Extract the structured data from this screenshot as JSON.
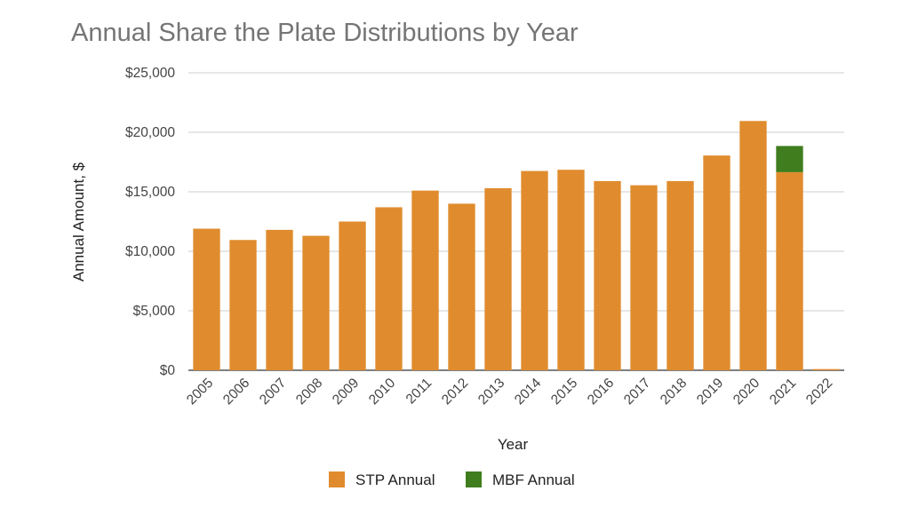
{
  "chart_data": {
    "type": "bar",
    "stacked": true,
    "title": "Annual Share the Plate Distributions by Year",
    "xlabel": "Year",
    "ylabel": "Annual Amount, $",
    "ylim": [
      0,
      25000
    ],
    "yticks": [
      0,
      5000,
      10000,
      15000,
      20000,
      25000
    ],
    "ytick_labels": [
      "$0",
      "$5,000",
      "$10,000",
      "$15,000",
      "$20,000",
      "$25,000"
    ],
    "grid": true,
    "legend_position": "bottom",
    "categories": [
      "2005",
      "2006",
      "2007",
      "2008",
      "2009",
      "2010",
      "2011",
      "2012",
      "2013",
      "2014",
      "2015",
      "2016",
      "2017",
      "2018",
      "2019",
      "2020",
      "2021",
      "2022"
    ],
    "series": [
      {
        "name": "STP Annual",
        "color": "#e08c2e",
        "values": [
          11900,
          10950,
          11800,
          11300,
          12500,
          13700,
          15100,
          14000,
          15300,
          16750,
          16850,
          15900,
          15550,
          15900,
          18050,
          20950,
          16650,
          100
        ]
      },
      {
        "name": "MBF Annual",
        "color": "#3f7d1e",
        "values": [
          0,
          0,
          0,
          0,
          0,
          0,
          0,
          0,
          0,
          0,
          0,
          0,
          0,
          0,
          0,
          0,
          2200,
          0
        ]
      }
    ]
  }
}
